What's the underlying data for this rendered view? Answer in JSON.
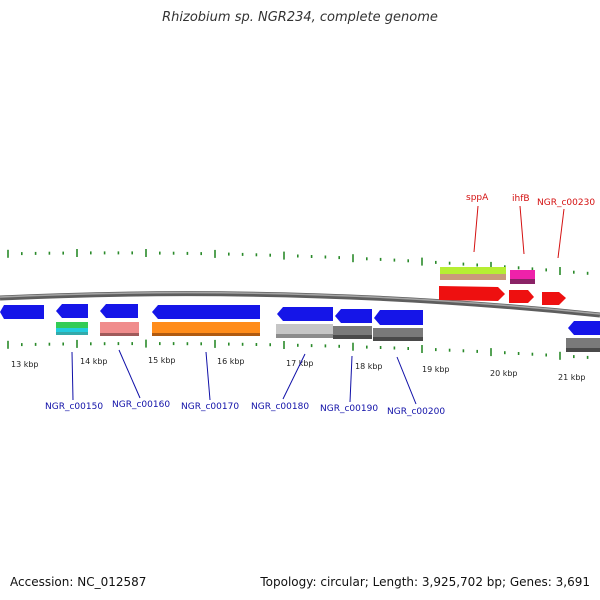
{
  "title": "Rhizobium sp. NGR234, complete genome",
  "footer": {
    "accession": "Accession: NC_012587",
    "summary": "Topology: circular; Length: 3,925,702 bp; Genes: 3,691"
  },
  "colors": {
    "backbone": "#7d7d7d",
    "tick": "#2a8a2a",
    "label_blue": "#1010a8",
    "label_red": "#d41010"
  },
  "map": {
    "tick_labels": [
      "13 kbp",
      "14 kbp",
      "15 kbp",
      "16 kbp",
      "17 kbp",
      "18 kbp",
      "19 kbp",
      "20 kbp",
      "21 kbp"
    ],
    "gene_labels": [
      {
        "text": "NGR_c00150",
        "color": "blue"
      },
      {
        "text": "NGR_c00160",
        "color": "blue"
      },
      {
        "text": "NGR_c00170",
        "color": "blue"
      },
      {
        "text": "NGR_c00180",
        "color": "blue"
      },
      {
        "text": "NGR_c00190",
        "color": "blue"
      },
      {
        "text": "NGR_c00200",
        "color": "blue"
      },
      {
        "text": "sppA",
        "color": "red"
      },
      {
        "text": "ihfB",
        "color": "red"
      },
      {
        "text": "NGR_c00230",
        "color": "red"
      }
    ]
  }
}
